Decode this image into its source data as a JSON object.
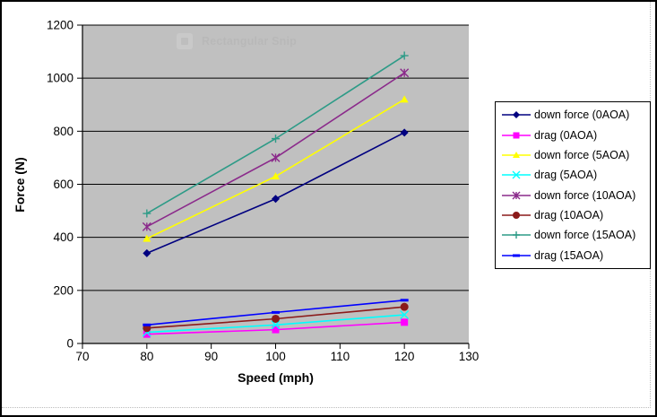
{
  "window": {
    "watermark": {
      "label": "Rectangular Snip",
      "icon": "rectangular-snip-icon"
    }
  },
  "chart_data": {
    "type": "line",
    "title": "",
    "xlabel": "Speed (mph)",
    "ylabel": "Force (N)",
    "xlim": [
      70,
      130
    ],
    "ylim": [
      0,
      1200
    ],
    "xticks": [
      70,
      80,
      90,
      100,
      110,
      120,
      130
    ],
    "yticks": [
      0,
      200,
      400,
      600,
      800,
      1000,
      1200
    ],
    "grid": "horizontal",
    "plot_bg_color": "#C0C0C0",
    "gridline_color": "#000000",
    "legend_position": "right",
    "x": [
      80,
      100,
      120
    ],
    "series": [
      {
        "name": "down force (0AOA)",
        "color": "#000080",
        "marker": "diamond",
        "values": [
          340,
          545,
          795
        ]
      },
      {
        "name": "drag (0AOA)",
        "color": "#FF00FF",
        "marker": "square",
        "values": [
          35,
          52,
          80
        ]
      },
      {
        "name": "down force (5AOA)",
        "color": "#FFFF00",
        "marker": "triangle",
        "values": [
          395,
          630,
          920
        ]
      },
      {
        "name": "drag (5AOA)",
        "color": "#00FFFF",
        "marker": "x",
        "values": [
          42,
          70,
          108
        ]
      },
      {
        "name": "down force (10AOA)",
        "color": "#8B2A8B",
        "marker": "star",
        "values": [
          440,
          700,
          1020
        ]
      },
      {
        "name": "drag (10AOA)",
        "color": "#8B1A1A",
        "marker": "circle",
        "values": [
          58,
          93,
          138
        ]
      },
      {
        "name": "down force (15AOA)",
        "color": "#2D9B87",
        "marker": "plus",
        "values": [
          490,
          772,
          1085
        ]
      },
      {
        "name": "drag (15AOA)",
        "color": "#0000FF",
        "marker": "dash",
        "values": [
          70,
          117,
          163
        ]
      }
    ]
  }
}
